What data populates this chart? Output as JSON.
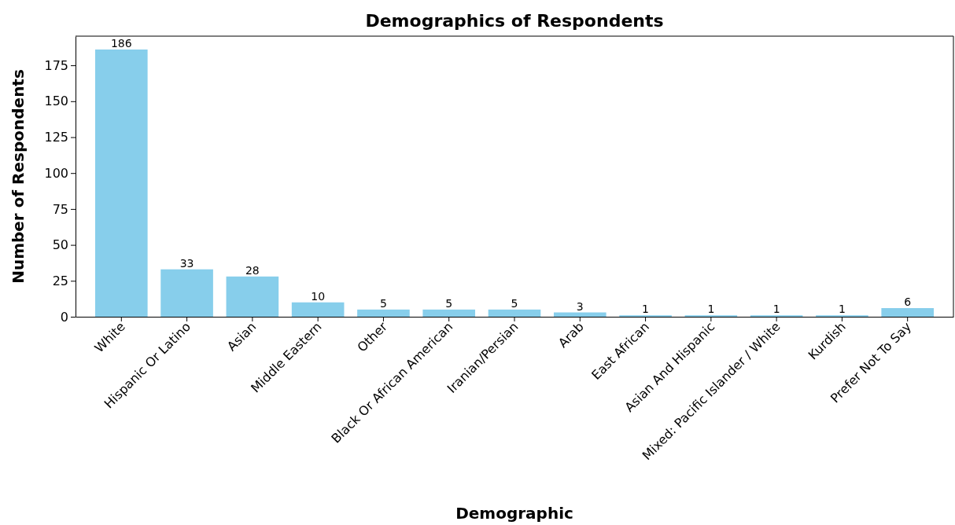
{
  "chart_data": {
    "type": "bar",
    "title": "Demographics of Respondents",
    "xlabel": "Demographic",
    "ylabel": "Number of Respondents",
    "categories": [
      "White",
      "Hispanic Or Latino",
      "Asian",
      "Middle Eastern",
      "Other",
      "Black Or African American",
      "Iranian/Persian",
      "Arab",
      "East African",
      "Asian And Hispanic",
      "Mixed: Pacific Islander / White",
      "Kurdish",
      "Prefer Not To Say"
    ],
    "values": [
      186,
      33,
      28,
      10,
      5,
      5,
      5,
      3,
      1,
      1,
      1,
      1,
      6
    ],
    "color": "#87ceeb",
    "ylim": [
      0,
      195.3
    ],
    "yticks": [
      0,
      25,
      50,
      75,
      100,
      125,
      150,
      175
    ],
    "grid": false,
    "data_labels": true
  }
}
